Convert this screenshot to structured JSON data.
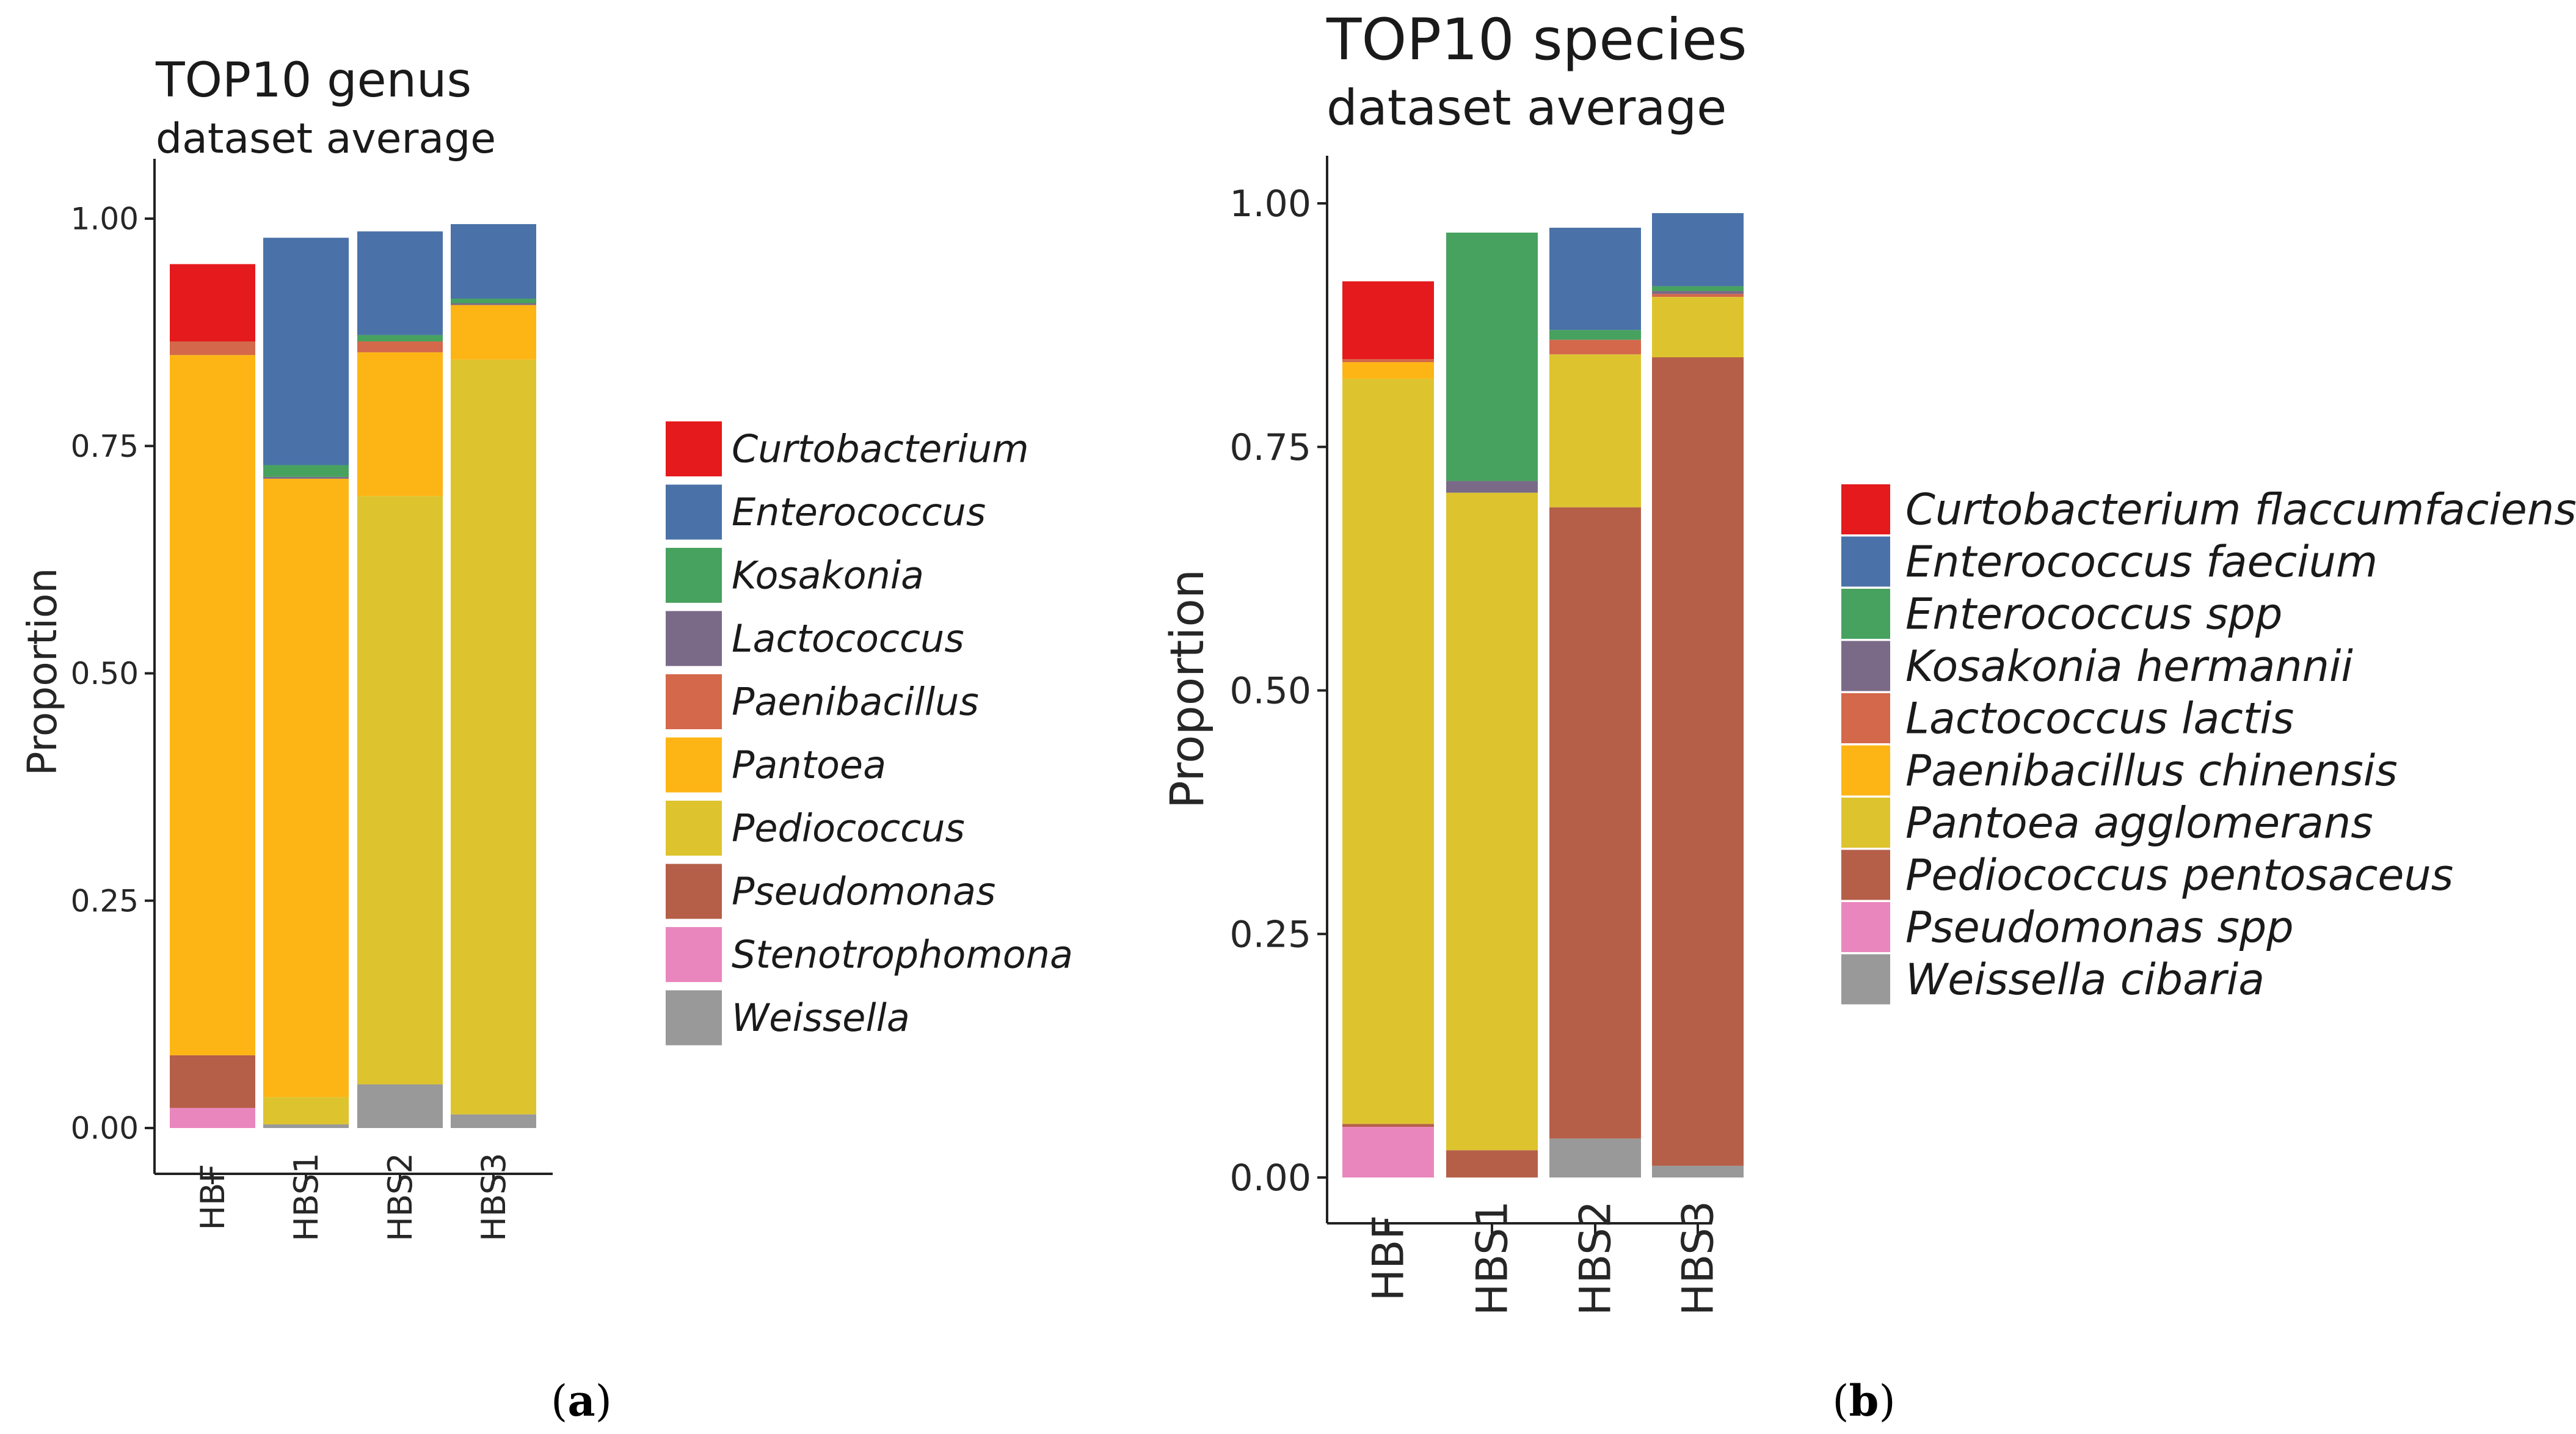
{
  "colors": {
    "red": "#E41A1C",
    "blue": "#4A72A8",
    "green": "#47A25F",
    "purple": "#7A6A87",
    "orange_red": "#D3684A",
    "orange": "#FDB515",
    "yellow": "#DDC42F",
    "brown": "#B55F49",
    "pink": "#EA86BE",
    "grey": "#999999"
  },
  "panels": {
    "a": {
      "label_letter": "a",
      "open": "(",
      "close": ")"
    },
    "b": {
      "label_letter": "b",
      "open": "(",
      "close": ")"
    }
  },
  "chart_data": [
    {
      "type": "bar",
      "stacked": true,
      "title": "TOP10 genus",
      "subtitle": "dataset average",
      "xlabel": "",
      "ylabel": "Proportion",
      "ylim": [
        0,
        1.05
      ],
      "yticks": [
        "0.00",
        "0.25",
        "0.50",
        "0.75",
        "1.00"
      ],
      "categories": [
        "HBF",
        "HBS1",
        "HBS2",
        "HBS3"
      ],
      "legend_position": "right",
      "series": [
        {
          "name": "Stenotrophomona",
          "color_key": "pink",
          "values": [
            0.022,
            0.0,
            0.0,
            0.0
          ]
        },
        {
          "name": "Weissella",
          "color_key": "grey",
          "values": [
            0.0,
            0.004,
            0.048,
            0.015
          ]
        },
        {
          "name": "Pseudomonas",
          "color_key": "brown",
          "values": [
            0.058,
            0.0,
            0.0,
            0.0
          ]
        },
        {
          "name": "Pediococcus",
          "color_key": "yellow",
          "values": [
            0.0,
            0.03,
            0.647,
            0.83
          ]
        },
        {
          "name": "Pantoea",
          "color_key": "orange",
          "values": [
            0.77,
            0.68,
            0.158,
            0.06
          ]
        },
        {
          "name": "Paenibacillus",
          "color_key": "orange_red",
          "values": [
            0.015,
            0.0,
            0.012,
            0.0
          ]
        },
        {
          "name": "Lactococcus",
          "color_key": "purple",
          "values": [
            0.0,
            0.002,
            0.0,
            0.002
          ]
        },
        {
          "name": "Kosakonia",
          "color_key": "green",
          "values": [
            0.0,
            0.013,
            0.007,
            0.005
          ]
        },
        {
          "name": "Enterococcus",
          "color_key": "blue",
          "values": [
            0.0,
            0.25,
            0.114,
            0.082
          ]
        },
        {
          "name": "Curtobacterium",
          "color_key": "red",
          "values": [
            0.085,
            0.0,
            0.0,
            0.0
          ]
        }
      ],
      "legend": [
        "Curtobacterium",
        "Enterococcus",
        "Kosakonia",
        "Lactococcus",
        "Paenibacillus",
        "Pantoea",
        "Pediococcus",
        "Pseudomonas",
        "Stenotrophomona",
        "Weissella"
      ]
    },
    {
      "type": "bar",
      "stacked": true,
      "title": "TOP10 species",
      "subtitle": "dataset average",
      "xlabel": "",
      "ylabel": "Proportion",
      "ylim": [
        0,
        1.05
      ],
      "yticks": [
        "0.00",
        "0.25",
        "0.50",
        "0.75",
        "1.00"
      ],
      "categories": [
        "HBF",
        "HBS1",
        "HBS2",
        "HBS3"
      ],
      "legend_position": "right",
      "series": [
        {
          "name": "Pseudomonas spp",
          "color_key": "pink",
          "values": [
            0.052,
            0.0,
            0.0,
            0.0
          ]
        },
        {
          "name": "Weissella cibaria",
          "color_key": "grey",
          "values": [
            0.0,
            0.0,
            0.04,
            0.012
          ]
        },
        {
          "name": "Pediococcus pentosaceus",
          "color_key": "brown",
          "values": [
            0.003,
            0.028,
            0.648,
            0.83
          ]
        },
        {
          "name": "Pantoea agglomerans",
          "color_key": "yellow",
          "values": [
            0.765,
            0.675,
            0.157,
            0.062
          ]
        },
        {
          "name": "Paenibacillus chinensis",
          "color_key": "orange",
          "values": [
            0.017,
            0.0,
            0.0,
            0.0
          ]
        },
        {
          "name": "Lactococcus  lactis",
          "color_key": "orange_red",
          "values": [
            0.003,
            0.0,
            0.015,
            0.003
          ]
        },
        {
          "name": "Kosakonia hermannii",
          "color_key": "purple",
          "values": [
            0.0,
            0.012,
            0.0,
            0.003
          ]
        },
        {
          "name": "Enterococcus spp",
          "color_key": "green",
          "values": [
            0.0,
            0.255,
            0.01,
            0.005
          ]
        },
        {
          "name": "Enterococcus faecium",
          "color_key": "blue",
          "values": [
            0.0,
            0.0,
            0.105,
            0.075
          ]
        },
        {
          "name": "Curtobacterium flaccumfaciens",
          "color_key": "red",
          "values": [
            0.08,
            0.0,
            0.0,
            0.0
          ]
        }
      ],
      "legend": [
        "Curtobacterium flaccumfaciens",
        "Enterococcus faecium",
        "Enterococcus spp",
        "Kosakonia hermannii",
        "Lactococcus  lactis",
        "Paenibacillus chinensis",
        "Pantoea agglomerans",
        "Pediococcus pentosaceus",
        "Pseudomonas spp",
        "Weissella cibaria"
      ]
    }
  ]
}
